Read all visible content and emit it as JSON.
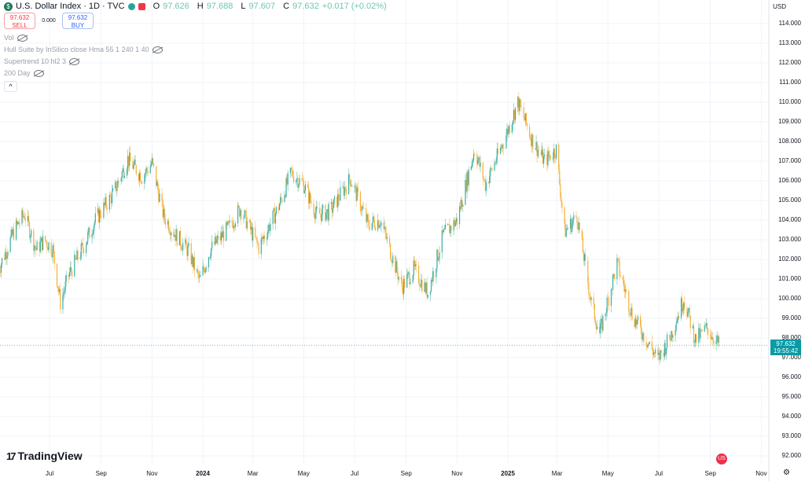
{
  "legend": {
    "title": "U.S. Dollar Index · 1D · TVC",
    "open_label": "O",
    "open": "97.626",
    "high_label": "H",
    "high": "97.688",
    "low_label": "L",
    "low": "97.607",
    "close_label": "C",
    "close": "97.632",
    "change": "+0.017 (+0.02%)"
  },
  "trade": {
    "sell_price": "97.632",
    "sell_label": "SELL",
    "spread": "0.000",
    "buy_price": "97.632",
    "buy_label": "BUY"
  },
  "indicators": [
    "Vol",
    "Hull Suite by InSilico close Hma 55 1 240 1 40",
    "Supertrend 10 hl2 3",
    "200 Day"
  ],
  "price_axis": {
    "currency": "USD",
    "current_price": "97.632",
    "countdown": "19:55:42"
  },
  "logo": {
    "mark": "17",
    "name": "TradingView"
  },
  "colors": {
    "up": "#26a69a",
    "down": "#f5a623",
    "accent": "#089ba6"
  },
  "chart_data": {
    "type": "line",
    "title": "U.S. Dollar Index · 1D · TVC",
    "ylim": [
      91.5,
      115
    ],
    "y_ticks": [
      "92.000",
      "93.000",
      "94.000",
      "95.000",
      "96.000",
      "97.000",
      "98.000",
      "99.000",
      "100.000",
      "101.000",
      "102.000",
      "103.000",
      "104.000",
      "105.000",
      "106.000",
      "107.000",
      "108.000",
      "109.000",
      "110.000",
      "111.000",
      "112.000",
      "113.000",
      "114.000"
    ],
    "x_ticks": [
      {
        "label": "Jul",
        "date": "2023-07-01"
      },
      {
        "label": "Sep",
        "date": "2023-09-01"
      },
      {
        "label": "Nov",
        "date": "2023-11-01"
      },
      {
        "label": "2024",
        "date": "2024-01-01",
        "bold": true
      },
      {
        "label": "Mar",
        "date": "2024-03-01"
      },
      {
        "label": "May",
        "date": "2024-05-01"
      },
      {
        "label": "Jul",
        "date": "2024-07-01"
      },
      {
        "label": "Sep",
        "date": "2024-09-01"
      },
      {
        "label": "Nov",
        "date": "2024-11-01"
      },
      {
        "label": "2025",
        "date": "2025-01-01",
        "bold": true
      },
      {
        "label": "Mar",
        "date": "2025-03-01"
      },
      {
        "label": "May",
        "date": "2025-05-01"
      },
      {
        "label": "Jul",
        "date": "2025-07-01"
      },
      {
        "label": "Sep",
        "date": "2025-09-01"
      },
      {
        "label": "Nov",
        "date": "2025-11-01"
      }
    ],
    "series": [
      {
        "values": [
          [
            "2023-05-01",
            101.5
          ],
          [
            "2023-05-20",
            103.5
          ],
          [
            "2023-06-01",
            104.3
          ],
          [
            "2023-06-15",
            102.5
          ],
          [
            "2023-06-25",
            103.0
          ],
          [
            "2023-07-05",
            102.5
          ],
          [
            "2023-07-14",
            99.8
          ],
          [
            "2023-07-25",
            101.3
          ],
          [
            "2023-08-10",
            102.6
          ],
          [
            "2023-08-25",
            104.0
          ],
          [
            "2023-09-15",
            105.3
          ],
          [
            "2023-10-03",
            107.1
          ],
          [
            "2023-10-20",
            106.2
          ],
          [
            "2023-11-01",
            106.9
          ],
          [
            "2023-11-15",
            104.2
          ],
          [
            "2023-11-30",
            103.2
          ],
          [
            "2023-12-15",
            102.4
          ],
          [
            "2023-12-28",
            100.9
          ],
          [
            "2024-01-10",
            102.5
          ],
          [
            "2024-02-01",
            103.6
          ],
          [
            "2024-02-15",
            104.6
          ],
          [
            "2024-03-08",
            102.6
          ],
          [
            "2024-04-01",
            104.7
          ],
          [
            "2024-04-16",
            106.4
          ],
          [
            "2024-05-01",
            105.8
          ],
          [
            "2024-05-16",
            104.3
          ],
          [
            "2024-06-01",
            104.4
          ],
          [
            "2024-06-26",
            106.1
          ],
          [
            "2024-07-17",
            103.8
          ],
          [
            "2024-08-01",
            104.0
          ],
          [
            "2024-08-27",
            100.6
          ],
          [
            "2024-09-10",
            101.5
          ],
          [
            "2024-09-27",
            100.3
          ],
          [
            "2024-10-15",
            103.2
          ],
          [
            "2024-11-01",
            104.0
          ],
          [
            "2024-11-22",
            107.6
          ],
          [
            "2024-12-05",
            105.8
          ],
          [
            "2024-12-27",
            108.0
          ],
          [
            "2025-01-13",
            110.0
          ],
          [
            "2025-01-30",
            108.1
          ],
          [
            "2025-02-14",
            107.0
          ],
          [
            "2025-02-28",
            107.6
          ],
          [
            "2025-03-10",
            103.4
          ],
          [
            "2025-03-25",
            104.2
          ],
          [
            "2025-04-11",
            99.8
          ],
          [
            "2025-04-21",
            98.2
          ],
          [
            "2025-05-12",
            101.8
          ],
          [
            "2025-05-30",
            99.2
          ],
          [
            "2025-06-12",
            98.2
          ],
          [
            "2025-06-30",
            96.9
          ],
          [
            "2025-07-14",
            98.0
          ],
          [
            "2025-07-31",
            100.0
          ],
          [
            "2025-08-14",
            97.9
          ],
          [
            "2025-08-28",
            98.5
          ],
          [
            "2025-09-12",
            97.6
          ]
        ]
      }
    ]
  }
}
